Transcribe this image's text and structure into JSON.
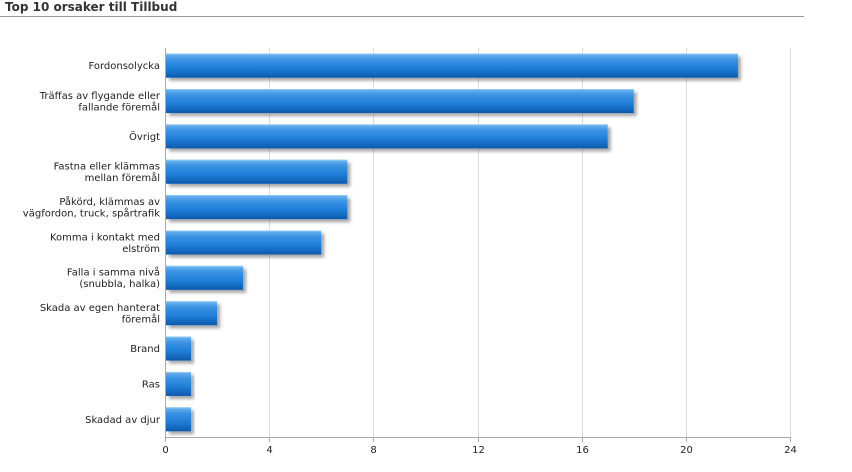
{
  "page": {
    "title": "Top 10 orsaker till Tillbud"
  },
  "colors": {
    "bar_light": "#4fa3ec",
    "bar_mid": "#1f7fd8",
    "bar_dark": "#0d5db3",
    "grid": "#dddddd",
    "axis": "#aaaaaa"
  },
  "chart_data": {
    "type": "bar",
    "orientation": "horizontal",
    "categories": [
      [
        "Fordonsolycka"
      ],
      [
        "Träffas av flygande eller",
        "fallande föremål"
      ],
      [
        "Övrigt"
      ],
      [
        "Fastna eller klämmas",
        "mellan föremål"
      ],
      [
        "Påkörd, klämmas av",
        "vägfordon, truck, spårtrafik"
      ],
      [
        "Komma i kontakt med",
        "elström"
      ],
      [
        "Falla i samma nivå",
        "(snubbla, halka)"
      ],
      [
        "Skada av egen hanterat",
        "föremål"
      ],
      [
        "Brand"
      ],
      [
        "Ras"
      ],
      [
        "Skadad av djur"
      ]
    ],
    "values": [
      22,
      18,
      17,
      7,
      7,
      6,
      3,
      2,
      1,
      1,
      1
    ],
    "xlim": [
      0,
      24
    ],
    "xticks": [
      "0",
      "4",
      "8",
      "12",
      "16",
      "20",
      "24"
    ],
    "grid": true,
    "legend": "none"
  }
}
